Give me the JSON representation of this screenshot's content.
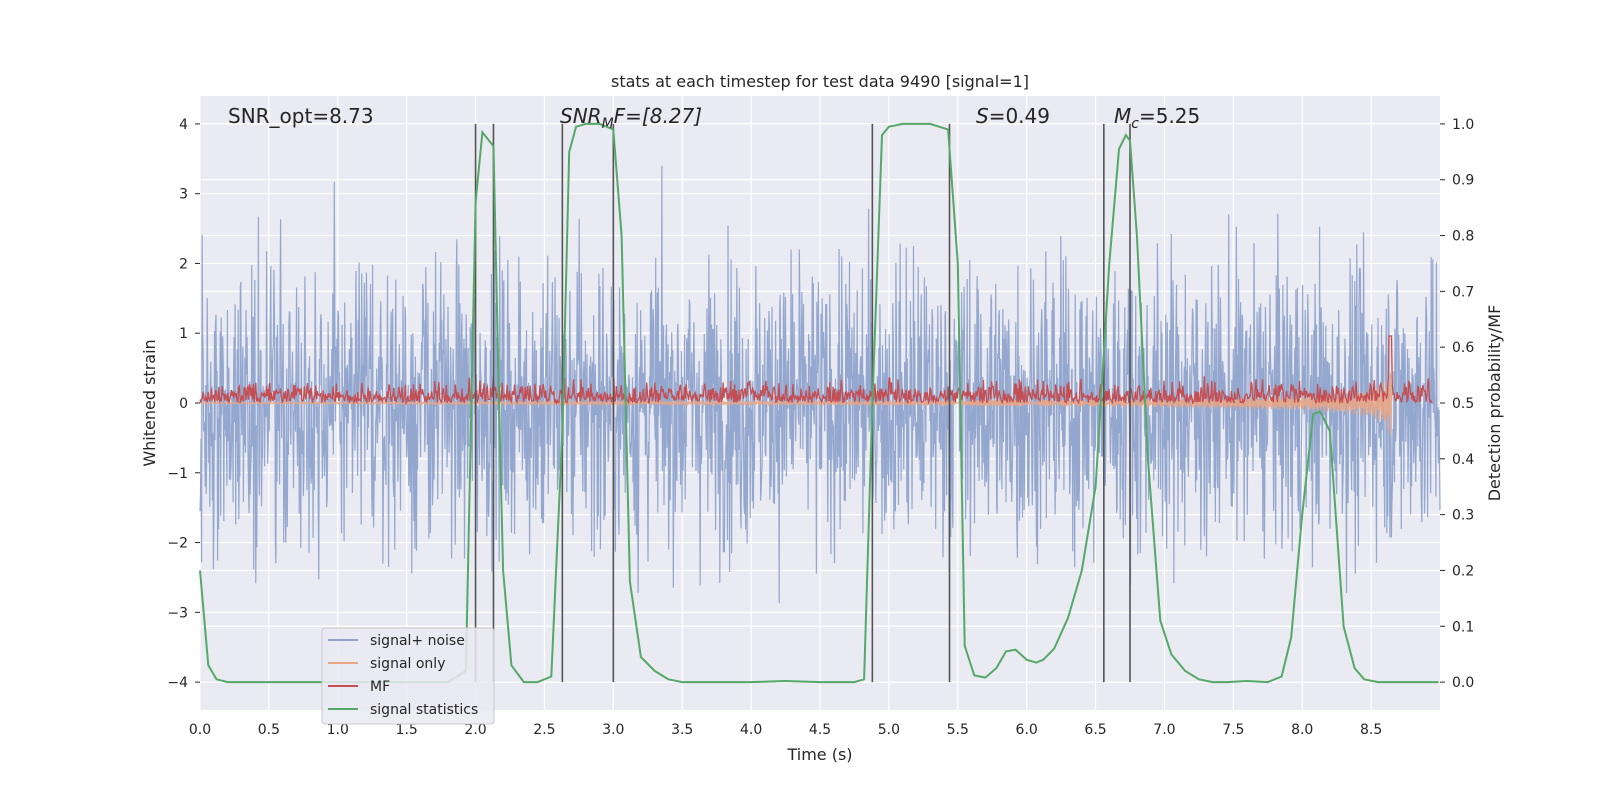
{
  "chart_data": {
    "type": "line",
    "title": "stats at each timestep for test data 9490 [signal=1]",
    "xlabel": "Time (s)",
    "ylabel_left": "Whitened strain",
    "ylabel_right": "Detection probability/MF",
    "xlim": [
      0,
      9.0
    ],
    "ylim_left": [
      -4.4,
      4.4
    ],
    "ylim_right": [
      -0.05,
      1.05
    ],
    "x_ticks": [
      "0.0",
      "0.5",
      "1.0",
      "1.5",
      "2.0",
      "2.5",
      "3.0",
      "3.5",
      "4.0",
      "4.5",
      "5.0",
      "5.5",
      "6.0",
      "6.5",
      "7.0",
      "7.5",
      "8.0",
      "8.5"
    ],
    "y_ticks_left": [
      "−4",
      "−3",
      "−2",
      "−1",
      "0",
      "1",
      "2",
      "3",
      "4"
    ],
    "y_ticks_right": [
      "0.0",
      "0.1",
      "0.2",
      "0.3",
      "0.4",
      "0.5",
      "0.6",
      "0.7",
      "0.8",
      "0.9",
      "1.0"
    ],
    "annotations": {
      "snr_opt": "SNR_opt=8.73",
      "snr_mf": "SNR",
      "snr_mf_sub": "M",
      "snr_mf_tail": "F=[8.27]",
      "s_label": "S",
      "s_value": "=0.49",
      "mc_label": "M",
      "mc_sub": "c",
      "mc_value": "=5.25"
    },
    "legend": {
      "position": "lower-left",
      "entries": [
        "signal+ noise",
        "signal only",
        "MF",
        "signal statistics"
      ]
    },
    "colors": {
      "noise": "#8fa3cc",
      "signal": "#e8a686",
      "mf": "#c44e52",
      "stats": "#55a868",
      "vline": "#555555",
      "background": "#eaeaf2",
      "grid": "#ffffff"
    },
    "vertical_lines": [
      2.0,
      2.13,
      2.63,
      3.0,
      4.88,
      5.44,
      6.56,
      6.75
    ],
    "noise_envelope": {
      "description_values": "signal+noise amplitude ~ |x| <= 2.6 typical, peaks to ~3.4 / -3.9",
      "typical_amplitude": 2.6,
      "min_x": 0.0,
      "max_x": 9.0
    },
    "signal_only": {
      "x": [
        0.0,
        1.0,
        2.0,
        3.0,
        4.0,
        5.0,
        6.0,
        6.5,
        7.0,
        7.5,
        8.0,
        8.3,
        8.5,
        8.6,
        8.65
      ],
      "amp": [
        0.01,
        0.012,
        0.015,
        0.02,
        0.025,
        0.03,
        0.04,
        0.05,
        0.06,
        0.08,
        0.1,
        0.14,
        0.2,
        0.3,
        0.5
      ]
    },
    "mf_baseline": 0.5,
    "mf_jitter": 0.025,
    "mf_peak": {
      "x": 8.64,
      "y": 0.62
    },
    "signal_statistics": {
      "x": [
        0.0,
        0.06,
        0.12,
        0.2,
        0.4,
        1.0,
        1.8,
        1.93,
        1.97,
        2.0,
        2.05,
        2.13,
        2.17,
        2.2,
        2.26,
        2.35,
        2.45,
        2.55,
        2.63,
        2.68,
        2.73,
        2.8,
        2.9,
        3.0,
        3.06,
        3.12,
        3.2,
        3.3,
        3.4,
        3.5,
        4.0,
        4.25,
        4.5,
        4.75,
        4.82,
        4.88,
        4.95,
        5.0,
        5.1,
        5.3,
        5.43,
        5.5,
        5.55,
        5.62,
        5.7,
        5.78,
        5.85,
        5.92,
        6.0,
        6.07,
        6.12,
        6.2,
        6.3,
        6.4,
        6.5,
        6.6,
        6.67,
        6.72,
        6.75,
        6.8,
        6.88,
        6.97,
        7.05,
        7.15,
        7.25,
        7.35,
        7.45,
        7.6,
        7.75,
        7.85,
        7.92,
        8.0,
        8.08,
        8.13,
        8.2,
        8.3,
        8.38,
        8.45,
        8.55,
        8.7,
        8.8,
        8.99
      ],
      "y": [
        0.2,
        0.03,
        0.005,
        0.0,
        0.0,
        0.0,
        0.0,
        0.02,
        0.5,
        0.86,
        0.985,
        0.96,
        0.5,
        0.2,
        0.03,
        0.0,
        0.0,
        0.01,
        0.45,
        0.95,
        0.995,
        1.0,
        1.0,
        0.99,
        0.8,
        0.18,
        0.045,
        0.02,
        0.005,
        0.0,
        0.0,
        0.002,
        0.0,
        0.0,
        0.005,
        0.5,
        0.98,
        0.995,
        1.0,
        1.0,
        0.99,
        0.75,
        0.065,
        0.012,
        0.008,
        0.025,
        0.055,
        0.058,
        0.04,
        0.035,
        0.04,
        0.06,
        0.115,
        0.2,
        0.35,
        0.75,
        0.955,
        0.98,
        0.97,
        0.8,
        0.4,
        0.11,
        0.05,
        0.02,
        0.005,
        0.0,
        0.0,
        0.002,
        0.0,
        0.01,
        0.08,
        0.3,
        0.48,
        0.485,
        0.45,
        0.1,
        0.025,
        0.005,
        0.0,
        0.0,
        0.0,
        0.0
      ]
    }
  }
}
